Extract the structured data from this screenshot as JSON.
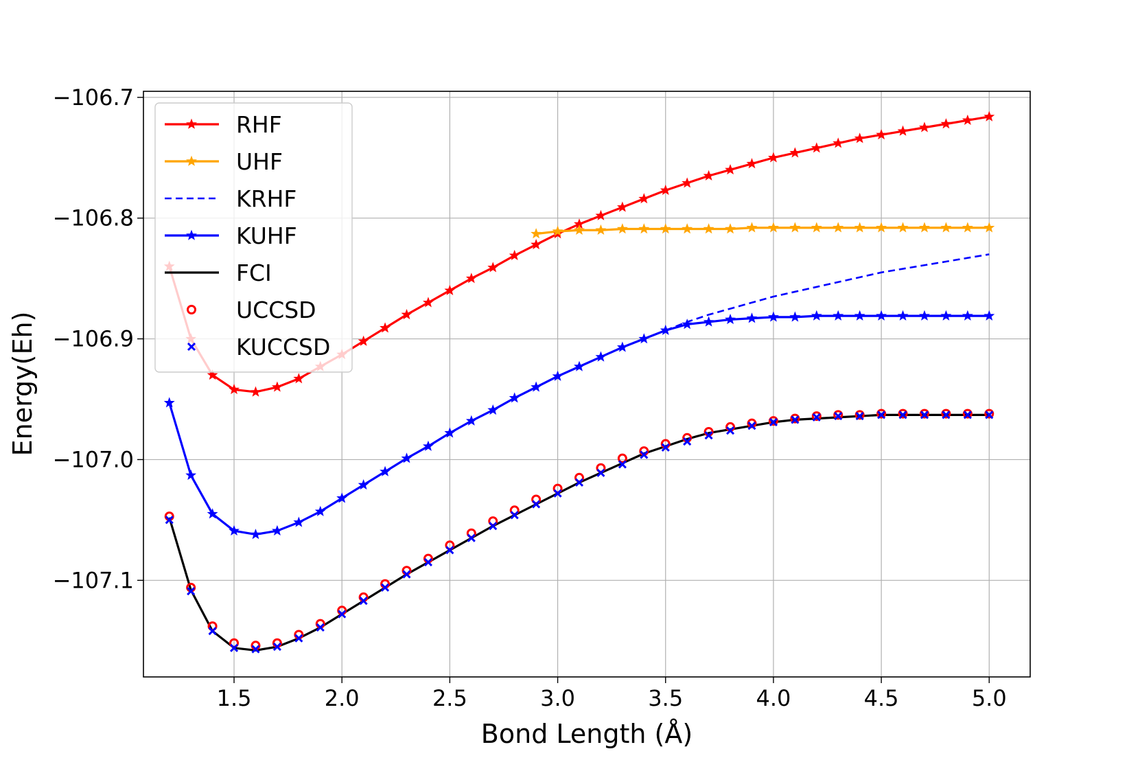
{
  "chart_data": {
    "type": "line",
    "title": "",
    "xlabel": "Bond Length (Å)",
    "ylabel": "Energy(Eh)",
    "xlim": [
      1.08,
      5.19
    ],
    "ylim": [
      -107.18,
      -106.695
    ],
    "grid": true,
    "legend_position": "top-left",
    "xticks": [
      1.5,
      2.0,
      2.5,
      3.0,
      3.5,
      4.0,
      4.5,
      5.0
    ],
    "xtick_labels": [
      "1.5",
      "2.0",
      "2.5",
      "3.0",
      "3.5",
      "4.0",
      "4.5",
      "5.0"
    ],
    "yticks": [
      -106.7,
      -106.8,
      -106.9,
      -107.0,
      -107.1
    ],
    "ytick_labels": [
      "−106.7",
      "−106.8",
      "−106.9",
      "−107.0",
      "−107.1"
    ],
    "series": [
      {
        "name": "RHF",
        "color": "#ff0000",
        "style": "line-star",
        "x": [
          1.2,
          1.3,
          1.4,
          1.5,
          1.6,
          1.7,
          1.8,
          1.9,
          2.0,
          2.1,
          2.2,
          2.3,
          2.4,
          2.5,
          2.6,
          2.7,
          2.8,
          2.9,
          3.0,
          3.1,
          3.2,
          3.3,
          3.4,
          3.5,
          3.6,
          3.7,
          3.8,
          3.9,
          4.0,
          4.1,
          4.2,
          4.3,
          4.4,
          4.5,
          4.6,
          4.7,
          4.8,
          4.9,
          5.0
        ],
        "y": [
          -106.84,
          -106.9,
          -106.93,
          -106.942,
          -106.944,
          -106.94,
          -106.933,
          -106.923,
          -106.913,
          -106.902,
          -106.891,
          -106.88,
          -106.87,
          -106.86,
          -106.85,
          -106.841,
          -106.831,
          -106.822,
          -106.813,
          -106.805,
          -106.798,
          -106.791,
          -106.784,
          -106.777,
          -106.771,
          -106.765,
          -106.76,
          -106.755,
          -106.75,
          -106.746,
          -106.742,
          -106.738,
          -106.734,
          -106.731,
          -106.728,
          -106.725,
          -106.722,
          -106.719,
          -106.716
        ]
      },
      {
        "name": "UHF",
        "color": "#ffa500",
        "style": "line-star",
        "x": [
          2.9,
          3.0,
          3.1,
          3.2,
          3.3,
          3.4,
          3.5,
          3.6,
          3.7,
          3.8,
          3.9,
          4.0,
          4.1,
          4.2,
          4.3,
          4.4,
          4.5,
          4.6,
          4.7,
          4.8,
          4.9,
          5.0
        ],
        "y": [
          -106.813,
          -106.811,
          -106.81,
          -106.81,
          -106.809,
          -106.809,
          -106.809,
          -106.809,
          -106.809,
          -106.809,
          -106.808,
          -106.808,
          -106.808,
          -106.808,
          -106.808,
          -106.808,
          -106.808,
          -106.808,
          -106.808,
          -106.808,
          -106.808,
          -106.808
        ]
      },
      {
        "name": "KRHF",
        "color": "#0000ff",
        "style": "dashed",
        "x": [
          3.5,
          3.6,
          3.7,
          3.8,
          3.9,
          4.0,
          4.1,
          4.2,
          4.3,
          4.4,
          4.5,
          4.6,
          4.7,
          4.8,
          4.9,
          5.0
        ],
        "y": [
          -106.893,
          -106.886,
          -106.88,
          -106.875,
          -106.87,
          -106.865,
          -106.861,
          -106.857,
          -106.853,
          -106.849,
          -106.845,
          -106.842,
          -106.839,
          -106.836,
          -106.833,
          -106.83
        ]
      },
      {
        "name": "KUHF",
        "color": "#0000ff",
        "style": "line-star",
        "x": [
          1.2,
          1.3,
          1.4,
          1.5,
          1.6,
          1.7,
          1.8,
          1.9,
          2.0,
          2.1,
          2.2,
          2.3,
          2.4,
          2.5,
          2.6,
          2.7,
          2.8,
          2.9,
          3.0,
          3.1,
          3.2,
          3.3,
          3.4,
          3.5,
          3.6,
          3.7,
          3.8,
          3.9,
          4.0,
          4.1,
          4.2,
          4.3,
          4.4,
          4.5,
          4.6,
          4.7,
          4.8,
          4.9,
          5.0
        ],
        "y": [
          -106.953,
          -107.013,
          -107.045,
          -107.059,
          -107.062,
          -107.059,
          -107.052,
          -107.043,
          -107.032,
          -107.021,
          -107.01,
          -106.999,
          -106.989,
          -106.978,
          -106.968,
          -106.959,
          -106.949,
          -106.94,
          -106.931,
          -106.923,
          -106.915,
          -106.907,
          -106.9,
          -106.893,
          -106.888,
          -106.886,
          -106.884,
          -106.883,
          -106.882,
          -106.882,
          -106.881,
          -106.881,
          -106.881,
          -106.881,
          -106.881,
          -106.881,
          -106.881,
          -106.881,
          -106.881
        ]
      },
      {
        "name": "FCI",
        "color": "#000000",
        "style": "line",
        "x": [
          1.2,
          1.3,
          1.4,
          1.5,
          1.6,
          1.7,
          1.8,
          1.9,
          2.0,
          2.1,
          2.2,
          2.3,
          2.4,
          2.5,
          2.6,
          2.7,
          2.8,
          2.9,
          3.0,
          3.1,
          3.2,
          3.3,
          3.4,
          3.5,
          3.6,
          3.7,
          3.8,
          3.9,
          4.0,
          4.1,
          4.2,
          4.3,
          4.4,
          4.5,
          4.6,
          4.7,
          4.8,
          4.9,
          5.0
        ],
        "y": [
          -107.048,
          -107.108,
          -107.142,
          -107.156,
          -107.158,
          -107.155,
          -107.148,
          -107.139,
          -107.128,
          -107.117,
          -107.106,
          -107.095,
          -107.085,
          -107.075,
          -107.065,
          -107.055,
          -107.046,
          -107.037,
          -107.028,
          -107.019,
          -107.011,
          -107.003,
          -106.995,
          -106.989,
          -106.983,
          -106.978,
          -106.975,
          -106.972,
          -106.969,
          -106.967,
          -106.966,
          -106.965,
          -106.964,
          -106.963,
          -106.963,
          -106.963,
          -106.963,
          -106.963,
          -106.963
        ]
      },
      {
        "name": "UCCSD",
        "color": "#ff0000",
        "style": "circle",
        "x": [
          1.2,
          1.3,
          1.4,
          1.5,
          1.6,
          1.7,
          1.8,
          1.9,
          2.0,
          2.1,
          2.2,
          2.3,
          2.4,
          2.5,
          2.6,
          2.7,
          2.8,
          2.9,
          3.0,
          3.1,
          3.2,
          3.3,
          3.4,
          3.5,
          3.6,
          3.7,
          3.8,
          3.9,
          4.0,
          4.1,
          4.2,
          4.3,
          4.4,
          4.5,
          4.6,
          4.7,
          4.8,
          4.9,
          5.0
        ],
        "y": [
          -107.047,
          -107.106,
          -107.138,
          -107.152,
          -107.154,
          -107.152,
          -107.145,
          -107.136,
          -107.125,
          -107.114,
          -107.103,
          -107.092,
          -107.082,
          -107.071,
          -107.061,
          -107.051,
          -107.042,
          -107.033,
          -107.024,
          -107.015,
          -107.007,
          -106.999,
          -106.993,
          -106.987,
          -106.982,
          -106.977,
          -106.973,
          -106.97,
          -106.968,
          -106.966,
          -106.964,
          -106.963,
          -106.963,
          -106.962,
          -106.962,
          -106.962,
          -106.962,
          -106.962,
          -106.962
        ]
      },
      {
        "name": "KUCCSD",
        "color": "#0000ff",
        "style": "x",
        "x": [
          1.2,
          1.3,
          1.4,
          1.5,
          1.6,
          1.7,
          1.8,
          1.9,
          2.0,
          2.1,
          2.2,
          2.3,
          2.4,
          2.5,
          2.6,
          2.7,
          2.8,
          2.9,
          3.0,
          3.1,
          3.2,
          3.3,
          3.4,
          3.5,
          3.6,
          3.7,
          3.8,
          3.9,
          4.0,
          4.1,
          4.2,
          4.3,
          4.4,
          4.5,
          4.6,
          4.7,
          4.8,
          4.9,
          5.0
        ],
        "y": [
          -107.05,
          -107.109,
          -107.142,
          -107.156,
          -107.157,
          -107.155,
          -107.148,
          -107.139,
          -107.128,
          -107.117,
          -107.106,
          -107.095,
          -107.085,
          -107.075,
          -107.065,
          -107.055,
          -107.046,
          -107.037,
          -107.028,
          -107.019,
          -107.011,
          -107.004,
          -106.996,
          -106.99,
          -106.985,
          -106.98,
          -106.976,
          -106.972,
          -106.969,
          -106.967,
          -106.965,
          -106.964,
          -106.964,
          -106.963,
          -106.963,
          -106.963,
          -106.963,
          -106.963,
          -106.963
        ]
      }
    ]
  }
}
